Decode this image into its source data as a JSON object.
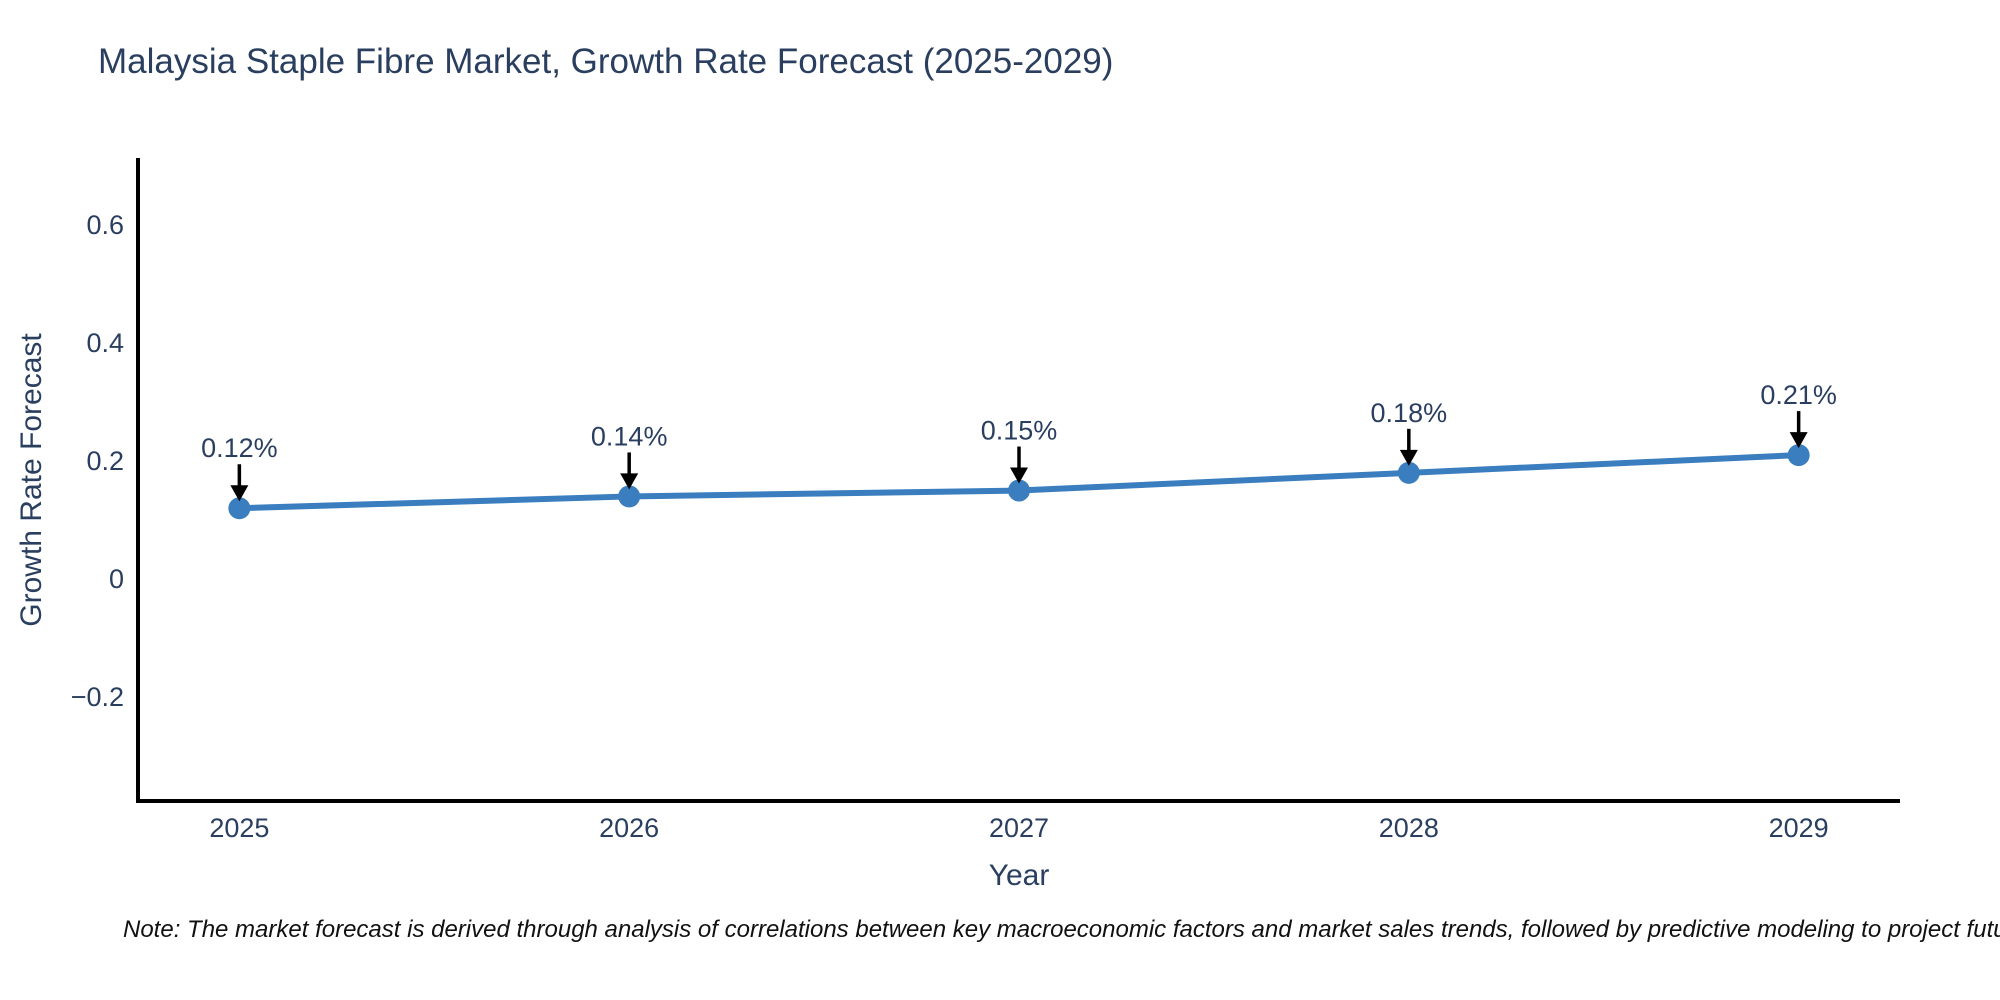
{
  "note": "Note: The market forecast is derived through analysis of correlations between key macroeconomic factors and market sales trends, followed by predictive modeling to project future sa",
  "chart_data": {
    "type": "line",
    "title": "Malaysia Staple Fibre Market, Growth Rate Forecast (2025-2029)",
    "xlabel": "Year",
    "ylabel": "Growth Rate Forecast",
    "categories": [
      "2025",
      "2026",
      "2027",
      "2028",
      "2029"
    ],
    "x": [
      2025,
      2026,
      2027,
      2028,
      2029
    ],
    "values": [
      0.12,
      0.14,
      0.15,
      0.18,
      0.21
    ],
    "point_labels": [
      "0.12%",
      "0.14%",
      "0.15%",
      "0.18%",
      "0.21%"
    ],
    "ytick_values": [
      -0.2,
      0,
      0.2,
      0.4,
      0.6
    ],
    "ytick_labels": [
      "−0.2",
      "0",
      "0.2",
      "0.4",
      "0.6"
    ],
    "xlim": [
      2024.74,
      2029.26
    ],
    "ylim": [
      -0.376,
      0.71
    ],
    "grid": false,
    "legend": "none",
    "colors": {
      "line": "#3a7ebf",
      "marker": "#3a7ebf",
      "arrow": "#000000",
      "axis_line": "#000000",
      "text": "#2a3f5f",
      "note_text": "#111111"
    }
  }
}
